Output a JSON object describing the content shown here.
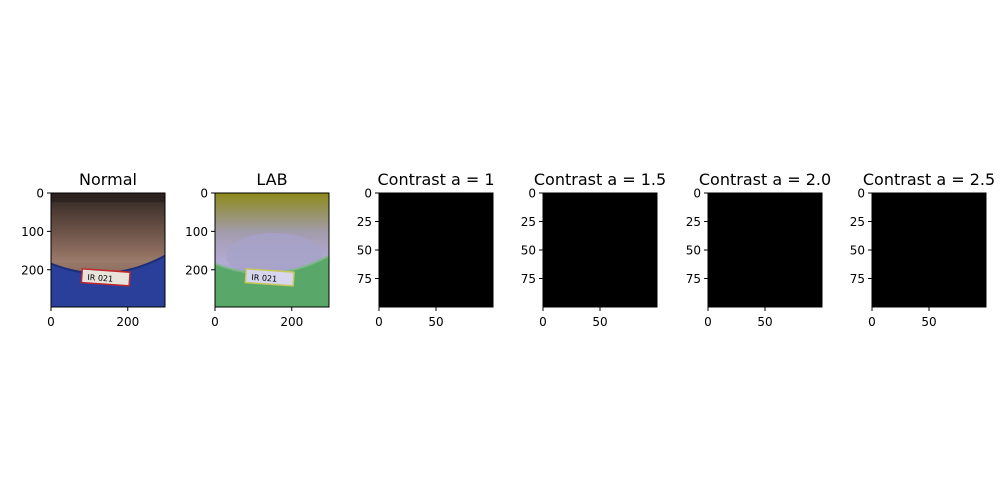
{
  "figure": {
    "background": "#ffffff",
    "axis_color": "#000000"
  },
  "chart_data": [
    {
      "type": "image",
      "title": "Normal",
      "content": "photo",
      "xticks": [
        "0",
        "200"
      ],
      "yticks": [
        "0",
        "100",
        "200"
      ],
      "colors": {
        "skin_top": "#3b2e28",
        "skin_mid": "#8a6a5c",
        "shirt": "#2a3f9a",
        "tag": "#e8e4dc",
        "tag_border": "#c0262a"
      },
      "tag_text": "IR 021"
    },
    {
      "type": "image",
      "title": "LAB",
      "content": "photo_lab",
      "xticks": [
        "0",
        "200"
      ],
      "yticks": [
        "0",
        "100",
        "200"
      ],
      "colors": {
        "bg_top": "#8f8a1c",
        "skin": "#a7a2c8",
        "shirt": "#59a86a",
        "tag": "#d7d6ee",
        "tag_border": "#c9c85a"
      },
      "tag_text": "IR 021"
    },
    {
      "type": "image",
      "title": "Contrast a = 1",
      "content": "black",
      "fill": "#000000",
      "xticks": [
        "0",
        "50"
      ],
      "yticks": [
        "0",
        "25",
        "50",
        "75"
      ]
    },
    {
      "type": "image",
      "title": "Contrast a = 1.5",
      "content": "black",
      "fill": "#000000",
      "xticks": [
        "0",
        "50"
      ],
      "yticks": [
        "0",
        "25",
        "50",
        "75"
      ]
    },
    {
      "type": "image",
      "title": "Contrast a = 2.0",
      "content": "black",
      "fill": "#000000",
      "xticks": [
        "0",
        "50"
      ],
      "yticks": [
        "0",
        "25",
        "50",
        "75"
      ]
    },
    {
      "type": "image",
      "title": "Contrast a = 2.5",
      "content": "black",
      "fill": "#000000",
      "xticks": [
        "0",
        "50"
      ],
      "yticks": [
        "0",
        "25",
        "50",
        "75"
      ]
    }
  ]
}
